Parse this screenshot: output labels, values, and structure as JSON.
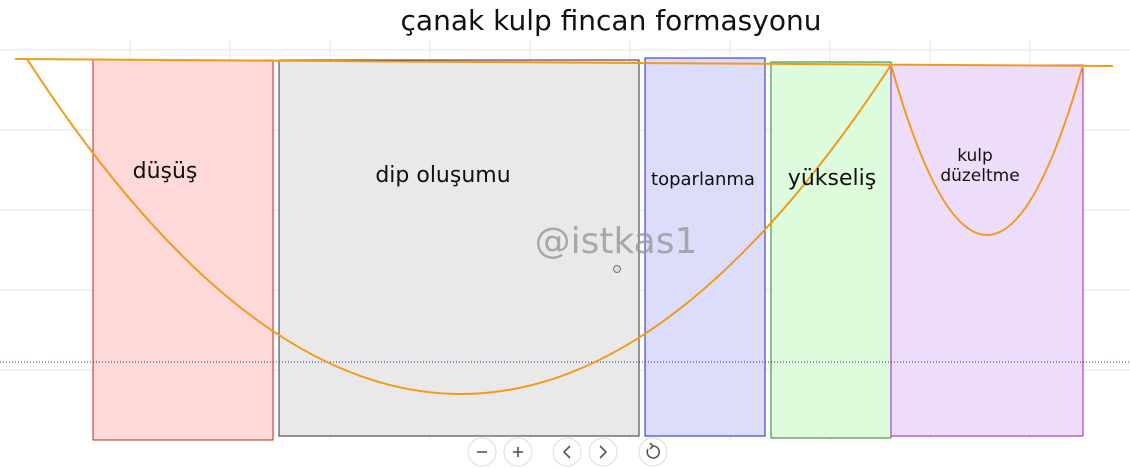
{
  "title": "çanak kulp fincan formasyonu",
  "watermark": "@istkas1",
  "phases": [
    {
      "label": "düşüş"
    },
    {
      "label": "dip oluşumu"
    },
    {
      "label": "toparlanma"
    },
    {
      "label": "yükseliş"
    },
    {
      "label_lines": [
        "kulp",
        "düzeltme"
      ]
    }
  ]
}
